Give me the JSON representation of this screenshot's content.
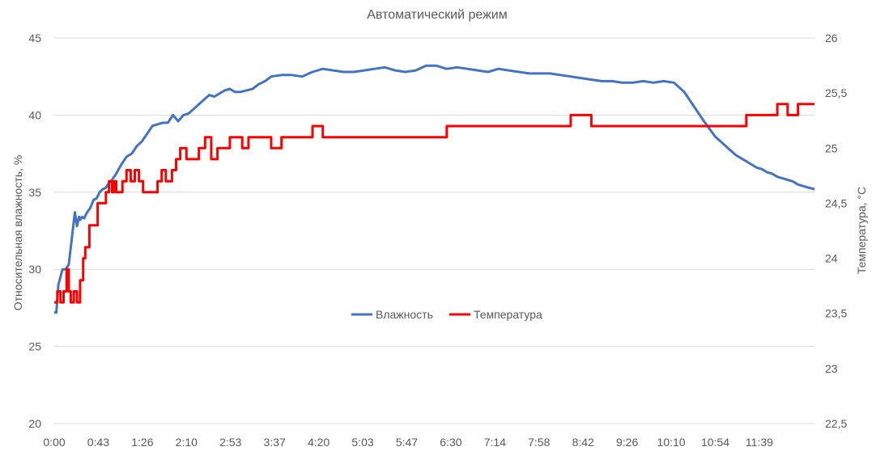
{
  "chart_data": {
    "type": "line",
    "title": "Автоматический режим",
    "xlabel": "",
    "ylabel": "Относительная влажность, %",
    "ylabel_right": "Температура, °C",
    "ylim": [
      20,
      45
    ],
    "ylim_right": [
      22.5,
      26
    ],
    "x_ticks": [
      "0:00",
      "0:43",
      "1:26",
      "2:10",
      "2:53",
      "3:37",
      "4:20",
      "5:03",
      "5:47",
      "6:30",
      "7:14",
      "7:58",
      "8:42",
      "9:26",
      "10:10",
      "10:54",
      "11:39"
    ],
    "x_range_minutes": [
      0,
      736
    ],
    "y_ticks_left": [
      "20",
      "25",
      "30",
      "35",
      "40",
      "45"
    ],
    "y_ticks_right": [
      "22,5",
      "23",
      "23,5",
      "24",
      "24,5",
      "25",
      "25,5",
      "26"
    ],
    "legend_position": "center",
    "series": [
      {
        "name": "Влажность",
        "axis": "left",
        "color": "#4472C4",
        "x": [
          0,
          2,
          4,
          6,
          8,
          11,
          14,
          17,
          20,
          22,
          24,
          25,
          27,
          29,
          31,
          33,
          35,
          38,
          41,
          44,
          47,
          50,
          53,
          56,
          60,
          65,
          70,
          75,
          80,
          85,
          90,
          95,
          100,
          105,
          110,
          115,
          120,
          125,
          130,
          135,
          140,
          145,
          150,
          155,
          160,
          165,
          170,
          175,
          180,
          186,
          192,
          198,
          204,
          210,
          220,
          230,
          240,
          250,
          260,
          270,
          280,
          290,
          300,
          310,
          320,
          330,
          340,
          350,
          360,
          370,
          380,
          390,
          400,
          410,
          420,
          430,
          440,
          450,
          460,
          470,
          480,
          490,
          500,
          510,
          520,
          530,
          540,
          550,
          560,
          570,
          580,
          590,
          600,
          610,
          620,
          630,
          640,
          650,
          660,
          670,
          675,
          680,
          685,
          690,
          695,
          700,
          705,
          710,
          715,
          720,
          725,
          730,
          736
        ],
        "y": [
          27.2,
          27.2,
          29.0,
          29.5,
          30.0,
          30.0,
          30.3,
          32.0,
          33.7,
          32.8,
          33.4,
          33.2,
          33.4,
          33.3,
          33.6,
          33.8,
          34.0,
          34.5,
          34.6,
          35.0,
          35.2,
          35.3,
          35.6,
          35.8,
          36.2,
          36.8,
          37.3,
          37.5,
          38.0,
          38.3,
          38.8,
          39.3,
          39.4,
          39.5,
          39.5,
          40.0,
          39.6,
          40.0,
          40.1,
          40.4,
          40.7,
          41.0,
          41.3,
          41.2,
          41.4,
          41.6,
          41.7,
          41.5,
          41.5,
          41.6,
          41.7,
          42.0,
          42.2,
          42.5,
          42.6,
          42.6,
          42.5,
          42.8,
          43.0,
          42.9,
          42.8,
          42.8,
          42.9,
          43.0,
          43.1,
          42.9,
          42.8,
          42.9,
          43.2,
          43.2,
          43.0,
          43.1,
          43.0,
          42.9,
          42.8,
          43.0,
          42.9,
          42.8,
          42.7,
          42.7,
          42.7,
          42.6,
          42.5,
          42.4,
          42.3,
          42.2,
          42.2,
          42.1,
          42.1,
          42.2,
          42.1,
          42.2,
          42.1,
          41.5,
          40.5,
          39.5,
          38.6,
          38.0,
          37.4,
          37.0,
          36.8,
          36.6,
          36.5,
          36.3,
          36.2,
          36.0,
          35.9,
          35.8,
          35.7,
          35.5,
          35.4,
          35.3,
          35.2
        ]
      },
      {
        "name": "Температура",
        "axis": "right",
        "color": "#FF0000",
        "x": [
          0,
          3,
          6,
          9,
          12,
          14,
          16,
          19,
          22,
          25,
          28,
          30,
          34,
          38,
          42,
          48,
          50,
          53,
          56,
          58,
          60,
          66,
          70,
          74,
          78,
          82,
          86,
          90,
          95,
          100,
          104,
          108,
          114,
          118,
          122,
          128,
          134,
          140,
          146,
          152,
          158,
          164,
          170,
          176,
          182,
          188,
          194,
          200,
          210,
          220,
          230,
          240,
          250,
          260,
          270,
          280,
          290,
          300,
          320,
          340,
          360,
          380,
          400,
          420,
          440,
          460,
          480,
          500,
          520,
          540,
          560,
          580,
          600,
          620,
          640,
          660,
          670,
          680,
          690,
          700,
          710,
          720,
          726,
          736
        ],
        "y": [
          23.6,
          23.7,
          23.6,
          23.7,
          23.9,
          23.7,
          23.6,
          23.7,
          23.6,
          23.8,
          24.0,
          24.1,
          24.3,
          24.3,
          24.5,
          24.5,
          24.6,
          24.7,
          24.6,
          24.7,
          24.6,
          24.7,
          24.8,
          24.7,
          24.8,
          24.7,
          24.6,
          24.6,
          24.6,
          24.7,
          24.8,
          24.7,
          24.8,
          24.9,
          25.0,
          24.9,
          24.9,
          25.0,
          25.1,
          24.9,
          25.0,
          25.0,
          25.1,
          25.1,
          25.0,
          25.1,
          25.1,
          25.1,
          25.0,
          25.1,
          25.1,
          25.1,
          25.2,
          25.1,
          25.1,
          25.1,
          25.1,
          25.1,
          25.1,
          25.1,
          25.1,
          25.2,
          25.2,
          25.2,
          25.2,
          25.2,
          25.2,
          25.3,
          25.2,
          25.2,
          25.2,
          25.2,
          25.2,
          25.2,
          25.2,
          25.2,
          25.3,
          25.3,
          25.3,
          25.4,
          25.3,
          25.4,
          25.4,
          25.4
        ]
      }
    ]
  }
}
